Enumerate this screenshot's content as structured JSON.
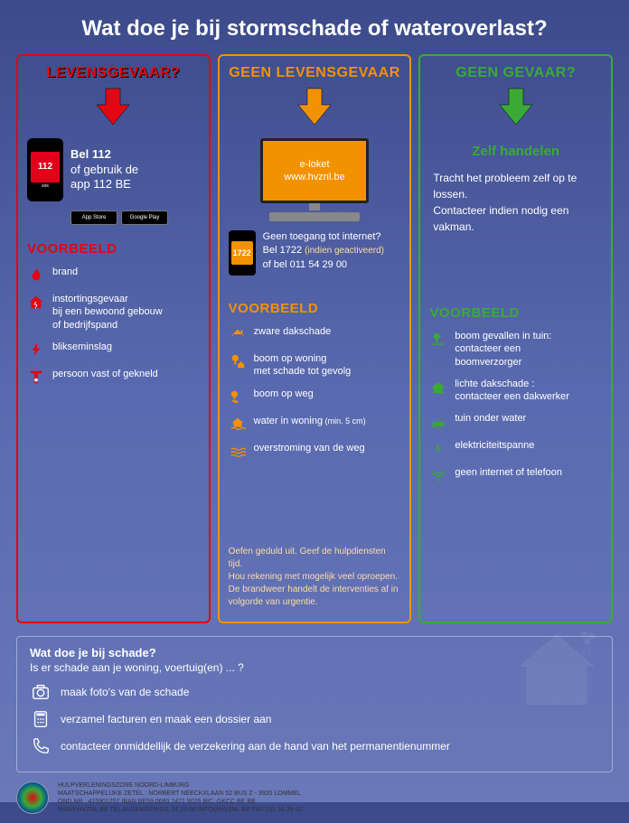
{
  "title": "Wat doe je bij stormschade of wateroverlast?",
  "colors": {
    "red": "#e30613",
    "orange": "#f39200",
    "green": "#3aaa35",
    "bg_top": "#3b4a8a",
    "bg_bottom": "#6878b8",
    "orange_light": "#ffdba8"
  },
  "columns": {
    "danger": {
      "header": "LEVENSGEVAAR?",
      "call_label": "Bel 112",
      "app_label": "of gebruik de\napp 112 BE",
      "phone_number": "112",
      "phone_sub": "sos",
      "badge1": "App Store",
      "badge2": "Google Play",
      "examples_label": "VOORBEELD",
      "examples": [
        {
          "icon": "fire",
          "text": "brand"
        },
        {
          "icon": "house-crack",
          "text": "instortingsgevaar\nbij een bewoond gebouw\nof bedrijfspand"
        },
        {
          "icon": "bolt",
          "text": "blikseminslag"
        },
        {
          "icon": "trapped",
          "text": "persoon vast of gekneld"
        }
      ]
    },
    "no_danger": {
      "header": "GEEN LEVENSGEVAAR",
      "monitor_line1": "e-loket",
      "monitor_line2": "www.hvznl.be",
      "phone_number": "1722",
      "internet_q": "Geen toegang tot internet?",
      "call_line": "Bel 1722",
      "call_note": "(indien geactiveerd)",
      "alt_line": "of bel 011 54 29 00",
      "examples_label": "VOORBEELD",
      "examples": [
        {
          "icon": "roof",
          "text": "zware dakschade"
        },
        {
          "icon": "tree-house",
          "text": "boom op woning\nmet schade tot gevolg"
        },
        {
          "icon": "tree-road",
          "text": "boom op weg"
        },
        {
          "icon": "water-house",
          "text": "water in woning",
          "note": "(min. 5 cm)"
        },
        {
          "icon": "flood-road",
          "text": "overstroming van de weg"
        }
      ],
      "footer_note": "Oefen geduld uit. Geef de hulpdiensten tijd.\nHou rekening met mogelijk veel oproepen.\nDe brandweer handelt de interventies af in\nvolgorde van urgentie."
    },
    "no_risk": {
      "header": "GEEN GEVAAR?",
      "subhead": "Zelf handelen",
      "body": "Tracht het probleem zelf op te lossen.\nContacteer indien nodig een vakman.",
      "examples_label": "VOORBEELD",
      "examples": [
        {
          "icon": "tree-garden",
          "text": "boom gevallen in tuin:\ncontacteer een\nboomverzorger"
        },
        {
          "icon": "roof-light",
          "text": "lichte dakschade :\ncontacteer een dakwerker"
        },
        {
          "icon": "garden-water",
          "text": "tuin onder water"
        },
        {
          "icon": "power",
          "text": "elektriciteitspanne"
        },
        {
          "icon": "wifi",
          "text": "geen internet of telefoon"
        }
      ]
    }
  },
  "damage": {
    "title": "Wat doe je bij schade?",
    "sub": "Is er schade aan je woning, voertuig(en) ... ?",
    "rows": [
      {
        "icon": "camera",
        "text": "maak foto's van de schade"
      },
      {
        "icon": "calculator",
        "text": "verzamel facturen en maak een dossier aan"
      },
      {
        "icon": "phone",
        "text": "contacteer onmiddellijk de verzekering aan de hand van het permanentienummer"
      }
    ]
  },
  "org": {
    "line1": "HULPVERLENINGSZONE NOORD-LIMBURG",
    "line2": "MAATSCHAPPELIJKE ZETEL : NORBERT NEECKXLAAN 52 BUS Z - 3920 LOMMEL",
    "line3": "OND.NR.: 415901257  IBAN BE59 0680 7471 9026  BIC: GKCC BE BB",
    "line4": "WWW.HVZNL.BE  TEL ALGEMEEN 011 54 29 00  INFO@HVZNL.BE  FAX 011 55 25 42"
  }
}
